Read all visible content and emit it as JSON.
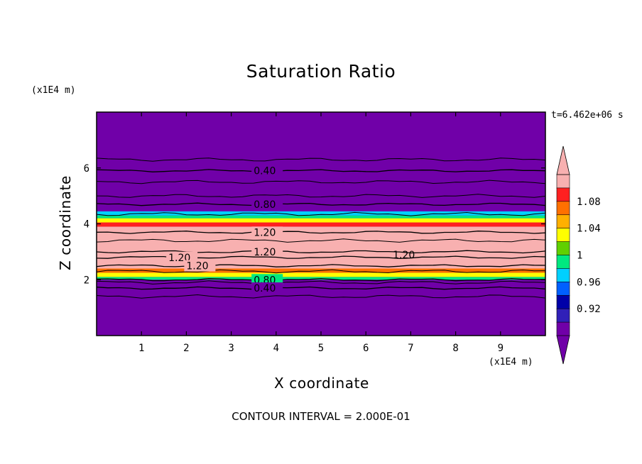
{
  "chart_data": {
    "type": "heatmap",
    "title": "Saturation Ratio",
    "xlabel": "X coordinate",
    "ylabel": "Z coordinate",
    "x_unit": "(x1E4 m)",
    "y_unit": "(x1E4 m)",
    "time_label": "t=6.462e+06 s",
    "footer": "CONTOUR INTERVAL = 2.000E-01",
    "xlim": [
      0,
      10
    ],
    "ylim": [
      0,
      8
    ],
    "x_ticks": [
      1,
      2,
      3,
      4,
      5,
      6,
      7,
      8,
      9
    ],
    "y_ticks": [
      2,
      4,
      6
    ],
    "contour_interval": 0.2,
    "colorbar": {
      "levels": [
        0.92,
        0.96,
        1,
        1.04,
        1.08
      ],
      "tick_labels": [
        "0.92",
        "0.96",
        "1",
        "1.04",
        "1.08"
      ],
      "colors": [
        "#7000a8",
        "#3020b8",
        "#0000a8",
        "#0060ff",
        "#00d0ff",
        "#00e880",
        "#60d000",
        "#ffff00",
        "#ffb000",
        "#ff7000",
        "#ff2020",
        "#f8b0b0"
      ],
      "extend": "both"
    },
    "bands": [
      {
        "z_from": 0.0,
        "z_to": 2.0,
        "value": 0.4,
        "color": "#7000a8"
      },
      {
        "z_from": 2.0,
        "z_to": 2.1,
        "value": 1.0,
        "color": "#00e880"
      },
      {
        "z_from": 2.1,
        "z_to": 2.25,
        "value": 1.05,
        "color": "#ffff00"
      },
      {
        "z_from": 2.25,
        "z_to": 2.4,
        "value": 1.08,
        "color": "#ff7000"
      },
      {
        "z_from": 2.4,
        "z_to": 3.9,
        "value": 1.2,
        "color": "#f8b0b0"
      },
      {
        "z_from": 3.9,
        "z_to": 4.05,
        "value": 1.09,
        "color": "#ff2020"
      },
      {
        "z_from": 4.05,
        "z_to": 4.2,
        "value": 1.03,
        "color": "#ffff00"
      },
      {
        "z_from": 4.2,
        "z_to": 4.3,
        "value": 1.0,
        "color": "#00e880"
      },
      {
        "z_from": 4.3,
        "z_to": 4.45,
        "value": 0.95,
        "color": "#00d0ff"
      },
      {
        "z_from": 4.45,
        "z_to": 8.0,
        "value": 0.4,
        "color": "#7000a8"
      }
    ],
    "contours": [
      {
        "value": 0.4,
        "z": 5.9,
        "label": "0.40"
      },
      {
        "value": 0.8,
        "z": 4.7,
        "label": "0.80"
      },
      {
        "value": 1.2,
        "z": 3.7,
        "label": "1.20"
      },
      {
        "value": 1.2,
        "z": 3.0,
        "label": "1.20"
      },
      {
        "value": 1.2,
        "z": 2.8,
        "label": "1.20"
      },
      {
        "value": 1.2,
        "z": 2.5,
        "label": "1.20"
      },
      {
        "value": 0.8,
        "z": 2.0,
        "label": "0.80"
      },
      {
        "value": 0.4,
        "z": 1.7,
        "label": "0.40"
      }
    ],
    "unlabeled_contours_z": [
      6.3,
      5.5,
      5.0,
      4.35,
      3.4,
      2.3,
      1.9,
      1.4
    ]
  }
}
